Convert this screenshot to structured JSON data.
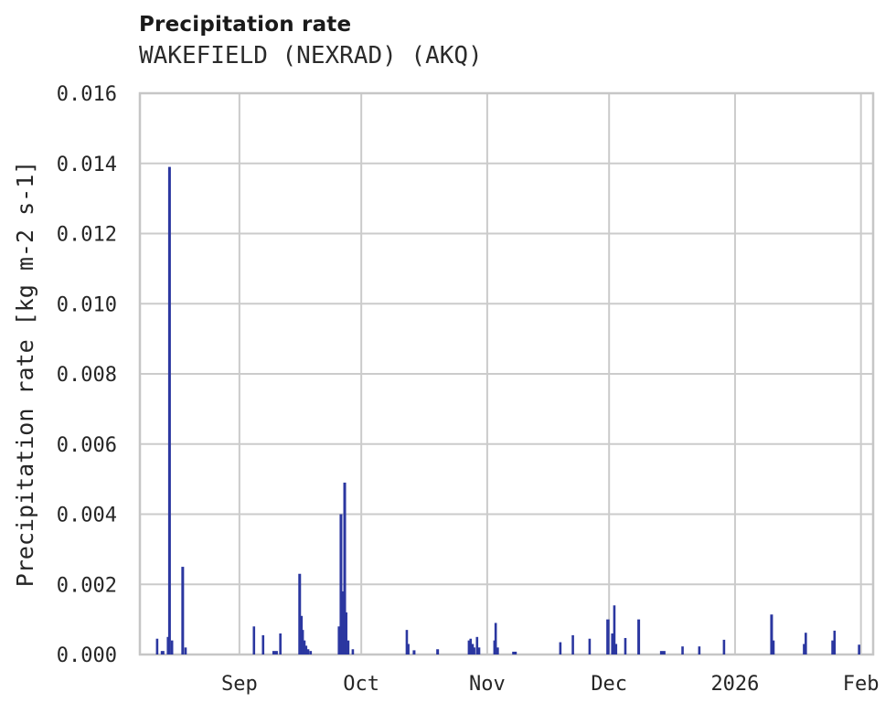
{
  "chart_data": {
    "type": "bar",
    "title": "Precipitation rate",
    "subtitle": "WAKEFIELD (NEXRAD) (AKQ)",
    "ylabel": "Precipitation rate [kg m-2 s-1]",
    "xlabel": "",
    "grid": true,
    "legend": false,
    "ylim": [
      0,
      0.016
    ],
    "y_ticks": [
      {
        "v": 0.0,
        "label": "0.000"
      },
      {
        "v": 0.002,
        "label": "0.002"
      },
      {
        "v": 0.004,
        "label": "0.004"
      },
      {
        "v": 0.006,
        "label": "0.006"
      },
      {
        "v": 0.008,
        "label": "0.008"
      },
      {
        "v": 0.01,
        "label": "0.010"
      },
      {
        "v": 0.012,
        "label": "0.012"
      },
      {
        "v": 0.014,
        "label": "0.014"
      },
      {
        "v": 0.016,
        "label": "0.016"
      }
    ],
    "x_range": [
      "2025-08-07T12:00",
      "2026-02-04T00:00"
    ],
    "x_ticks": [
      {
        "t": "2025-09-01T00:00",
        "label": "Sep"
      },
      {
        "t": "2025-10-01T00:00",
        "label": "Oct"
      },
      {
        "t": "2025-11-01T00:00",
        "label": "Nov"
      },
      {
        "t": "2025-12-01T00:00",
        "label": "Dec"
      },
      {
        "t": "2026-01-01T00:00",
        "label": "2026"
      },
      {
        "t": "2026-02-01T00:00",
        "label": "Feb"
      }
    ],
    "series": [
      {
        "name": "Precipitation rate",
        "units": "kg m-2 s-1",
        "color": "#2b37a0",
        "points": [
          {
            "t": "2025-08-11T18:00",
            "v": 0.00045
          },
          {
            "t": "2025-08-13T02:00",
            "v": 0.0001,
            "w": 4
          },
          {
            "t": "2025-08-14T10:00",
            "v": 0.0005
          },
          {
            "t": "2025-08-14T19:00",
            "v": 0.0139,
            "w": 3
          },
          {
            "t": "2025-08-15T10:00",
            "v": 0.0004
          },
          {
            "t": "2025-08-18T01:00",
            "v": 0.0025,
            "w": 3
          },
          {
            "t": "2025-08-18T18:00",
            "v": 0.0002
          },
          {
            "t": "2025-09-04T14:00",
            "v": 0.0008
          },
          {
            "t": "2025-09-06T20:00",
            "v": 0.00055
          },
          {
            "t": "2025-09-09T19:00",
            "v": 0.0001,
            "w": 6
          },
          {
            "t": "2025-09-11T02:00",
            "v": 0.0006
          },
          {
            "t": "2025-09-15T20:00",
            "v": 0.0023,
            "w": 3
          },
          {
            "t": "2025-09-16T07:00",
            "v": 0.0011
          },
          {
            "t": "2025-09-16T14:00",
            "v": 0.0007
          },
          {
            "t": "2025-09-17T00:00",
            "v": 0.0004
          },
          {
            "t": "2025-09-17T10:00",
            "v": 0.00025
          },
          {
            "t": "2025-09-17T22:00",
            "v": 0.00015
          },
          {
            "t": "2025-09-18T13:00",
            "v": 0.0001
          },
          {
            "t": "2025-09-25T12:00",
            "v": 0.0008
          },
          {
            "t": "2025-09-26T00:00",
            "v": 0.004,
            "w": 3
          },
          {
            "t": "2025-09-26T10:00",
            "v": 0.0018
          },
          {
            "t": "2025-09-26T22:00",
            "v": 0.0049,
            "w": 3
          },
          {
            "t": "2025-09-27T07:00",
            "v": 0.0012
          },
          {
            "t": "2025-09-27T19:00",
            "v": 0.0004
          },
          {
            "t": "2025-09-28T22:00",
            "v": 0.00015
          },
          {
            "t": "2025-10-12T05:00",
            "v": 0.0007
          },
          {
            "t": "2025-10-12T14:00",
            "v": 0.0003
          },
          {
            "t": "2025-10-14T00:00",
            "v": 0.00012,
            "w": 3
          },
          {
            "t": "2025-10-19T19:00",
            "v": 0.00015,
            "w": 3
          },
          {
            "t": "2025-10-27T12:00",
            "v": 0.0004
          },
          {
            "t": "2025-10-27T22:00",
            "v": 0.00045
          },
          {
            "t": "2025-10-28T10:00",
            "v": 0.0003
          },
          {
            "t": "2025-10-28T19:00",
            "v": 0.0002
          },
          {
            "t": "2025-10-29T12:00",
            "v": 0.0005
          },
          {
            "t": "2025-10-30T00:00",
            "v": 0.0002
          },
          {
            "t": "2025-11-02T19:00",
            "v": 0.0004
          },
          {
            "t": "2025-11-03T02:00",
            "v": 0.0009
          },
          {
            "t": "2025-11-03T14:00",
            "v": 0.0002
          },
          {
            "t": "2025-11-07T17:00",
            "v": 8e-05,
            "w": 5
          },
          {
            "t": "2025-11-19T00:00",
            "v": 0.00035
          },
          {
            "t": "2025-11-22T02:00",
            "v": 0.00055
          },
          {
            "t": "2025-11-26T05:00",
            "v": 0.00045
          },
          {
            "t": "2025-11-30T17:00",
            "v": 0.001,
            "w": 3.5
          },
          {
            "t": "2025-12-01T19:00",
            "v": 0.0006
          },
          {
            "t": "2025-12-02T07:00",
            "v": 0.0014
          },
          {
            "t": "2025-12-02T17:00",
            "v": 0.0003
          },
          {
            "t": "2025-12-05T00:00",
            "v": 0.00047
          },
          {
            "t": "2025-12-08T07:00",
            "v": 0.001,
            "w": 3
          },
          {
            "t": "2025-12-14T05:00",
            "v": 0.0001,
            "w": 6
          },
          {
            "t": "2025-12-19T02:00",
            "v": 0.00023
          },
          {
            "t": "2025-12-23T05:00",
            "v": 0.00023
          },
          {
            "t": "2025-12-29T07:00",
            "v": 0.00042
          },
          {
            "t": "2026-01-10T00:00",
            "v": 0.00114,
            "w": 3
          },
          {
            "t": "2026-01-10T10:00",
            "v": 0.0004,
            "w": 3
          },
          {
            "t": "2026-01-18T01:00",
            "v": 0.0003,
            "w": 3
          },
          {
            "t": "2026-01-18T10:00",
            "v": 0.00062
          },
          {
            "t": "2026-01-25T00:00",
            "v": 0.0004
          },
          {
            "t": "2026-01-25T12:00",
            "v": 0.00068
          },
          {
            "t": "2026-01-31T13:00",
            "v": 0.00028
          }
        ]
      }
    ],
    "colors": {
      "bar": "#2b37a0",
      "grid": "#cbcbcb",
      "spine": "#c6c6c6",
      "text": "#262626",
      "title": "#1a1a1a",
      "background": "#ffffff"
    }
  }
}
